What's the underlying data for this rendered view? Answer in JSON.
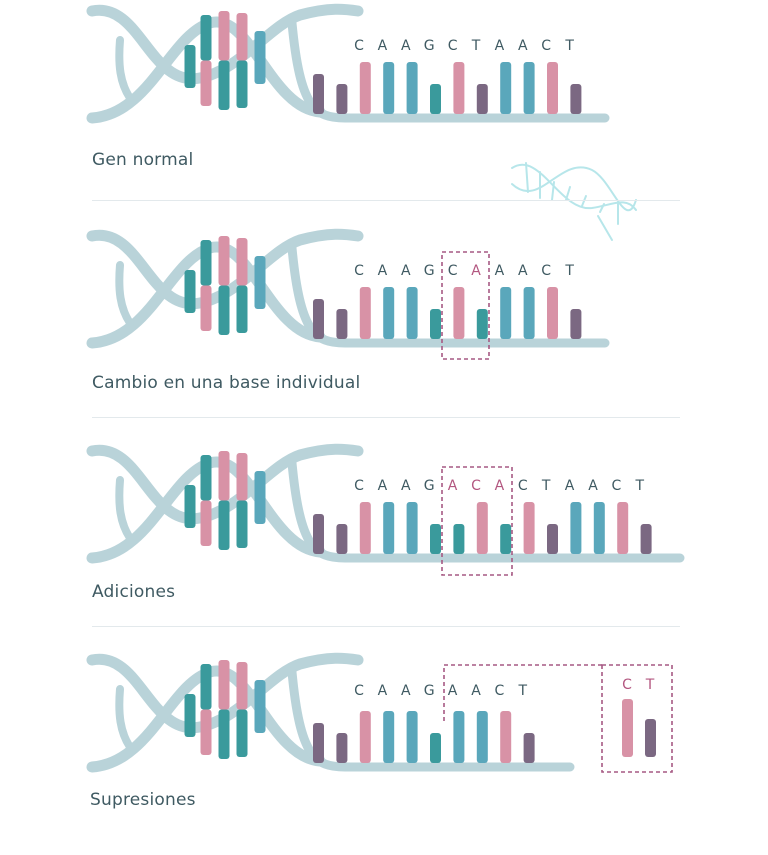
{
  "colors": {
    "helix_back": "#b9d3d9",
    "helix_front": "#3f9aa7",
    "pink": "#d892a6",
    "teal_dark": "#3a9a9c",
    "teal_light": "#5aa7bb",
    "mauve": "#7b6882",
    "text": "#3f5a62",
    "highlight": "#b35780",
    "dash": "#a65983",
    "backbone": "#b9d3d9"
  },
  "icons": {
    "dna_decoration": "dna-helix-outline-icon"
  },
  "panels": [
    {
      "title": "Gen normal",
      "sequence": [
        "C",
        "A",
        "A",
        "G",
        "C",
        "T",
        "A",
        "A",
        "C",
        "T"
      ],
      "highlight_indices": [],
      "bars": [
        "mauve",
        "mauve",
        "pink",
        "teal_light",
        "teal_light",
        "teal_dark",
        "pink",
        "mauve",
        "teal_light",
        "teal_light",
        "pink",
        "mauve"
      ]
    },
    {
      "title": "Cambio en una base individual",
      "sequence": [
        "C",
        "A",
        "A",
        "G",
        "C",
        "A",
        "A",
        "A",
        "C",
        "T"
      ],
      "highlight_indices": [
        5
      ],
      "bars": [
        "mauve",
        "mauve",
        "pink",
        "teal_light",
        "teal_light",
        "teal_dark",
        "pink",
        "teal_dark",
        "teal_light",
        "teal_light",
        "pink",
        "mauve"
      ]
    },
    {
      "title": "Adiciones",
      "sequence": [
        "C",
        "A",
        "A",
        "G",
        "A",
        "C",
        "A",
        "C",
        "T",
        "A",
        "A",
        "C",
        "T"
      ],
      "highlight_indices": [
        4,
        5,
        6
      ],
      "bars": [
        "mauve",
        "mauve",
        "pink",
        "teal_light",
        "teal_light",
        "teal_dark",
        "teal_dark",
        "pink",
        "teal_dark",
        "pink",
        "mauve",
        "teal_light",
        "teal_light",
        "pink",
        "mauve"
      ]
    },
    {
      "title": "Supresiones",
      "sequence": [
        "C",
        "A",
        "A",
        "G",
        "A",
        "A",
        "C",
        "T"
      ],
      "highlight_indices": [],
      "bars": [
        "mauve",
        "mauve",
        "pink",
        "teal_light",
        "teal_light",
        "teal_dark",
        "teal_light",
        "teal_light",
        "pink",
        "mauve"
      ],
      "removed": {
        "letters": [
          "C",
          "T"
        ],
        "bars": [
          "pink",
          "mauve"
        ]
      }
    }
  ]
}
